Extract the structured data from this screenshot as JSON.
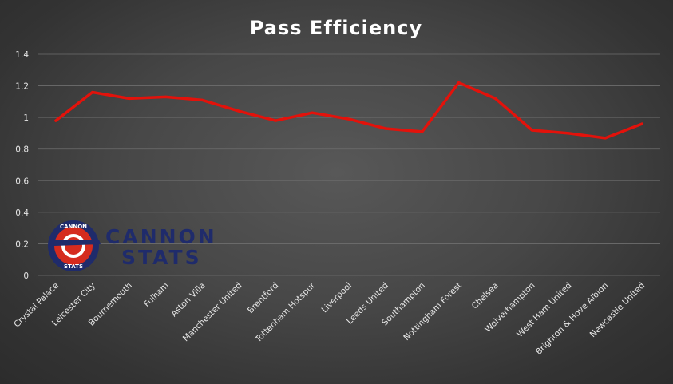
{
  "chart_data": {
    "type": "line",
    "title": "Pass Efficiency",
    "xlabel": "",
    "ylabel": "",
    "ylim": [
      0,
      1.4
    ],
    "yticks": [
      "0",
      "0.2",
      "0.4",
      "0.6",
      "0.8",
      "1",
      "1.2",
      "1.4"
    ],
    "grid": true,
    "categories": [
      "Crystal Palace",
      "Leicester City",
      "Bournemouth",
      "Fulham",
      "Aston Villa",
      "Manchester United",
      "Brentford",
      "Tottenham Hotspur",
      "Liverpool",
      "Leeds United",
      "Southampton",
      "Nottingham Forest",
      "Chelsea",
      "Wolverhampton",
      "West Ham United",
      "Brighton & Hove Albion",
      "Newcastle United"
    ],
    "series": [
      {
        "values": [
          0.98,
          1.16,
          1.12,
          1.13,
          1.11,
          1.04,
          0.98,
          1.03,
          0.99,
          0.93,
          0.91,
          1.22,
          1.12,
          0.92,
          0.9,
          0.87,
          0.96
        ],
        "color": "#e3120b"
      }
    ]
  },
  "logo": {
    "line1": "CANNON",
    "line2": "STATS",
    "ring_top": "CANNON",
    "ring_bottom": "STATS",
    "icon": "cannon-stats-badge-icon"
  }
}
